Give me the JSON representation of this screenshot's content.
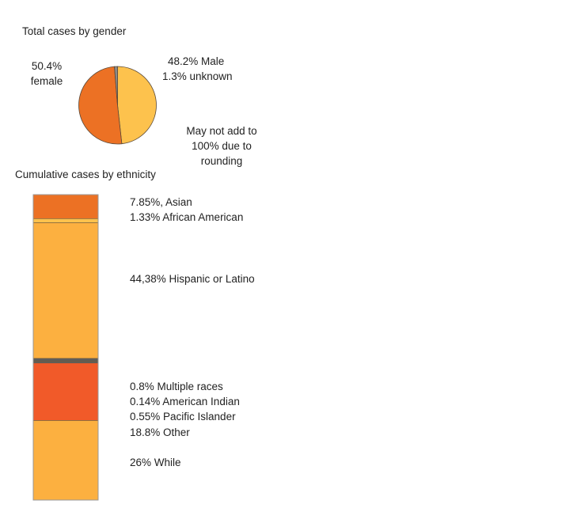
{
  "chart_data": [
    {
      "type": "pie",
      "title": "Total cases by gender",
      "slices": [
        {
          "name": "Male",
          "value": 48.2,
          "label_pct": "48.2% Male",
          "color": "#fdc24d"
        },
        {
          "name": "Female",
          "value": 50.4,
          "label_pct": "50.4%",
          "label_name": "female",
          "color": "#ec7124"
        },
        {
          "name": "Unknown",
          "value": 1.3,
          "label_pct": "1.3% unknown",
          "color": "#8a8a8a"
        }
      ],
      "note_lines": [
        "May not add to",
        "100% due to",
        "rounding"
      ]
    },
    {
      "type": "bar",
      "stacked": true,
      "title": "Cumulative cases by ethnicity",
      "segments": [
        {
          "name": "Asian",
          "value": 7.85,
          "label": "7.85%, Asian",
          "color": "#ec7124"
        },
        {
          "name": "African American",
          "value": 1.33,
          "label": "1.33% African American",
          "color": "#fdc24d"
        },
        {
          "name": "Hispanic or Latino",
          "value": 44.38,
          "label": "44,38% Hispanic or Latino",
          "color": "#fcb040"
        },
        {
          "name": "Multiple races",
          "value": 0.8,
          "label": "0.8% Multiple races",
          "color": "#5e5e5e"
        },
        {
          "name": "American Indian",
          "value": 0.14,
          "label": "0.14% American Indian",
          "color": "#777777"
        },
        {
          "name": "Pacific Islander",
          "value": 0.55,
          "label": "0.55% Pacific Islander",
          "color": "#5e5e5e"
        },
        {
          "name": "Other",
          "value": 18.8,
          "label": "18.8% Other",
          "color": "#f15a29"
        },
        {
          "name": "White",
          "value": 26,
          "label": "26% While",
          "color": "#fcb040"
        }
      ]
    }
  ]
}
